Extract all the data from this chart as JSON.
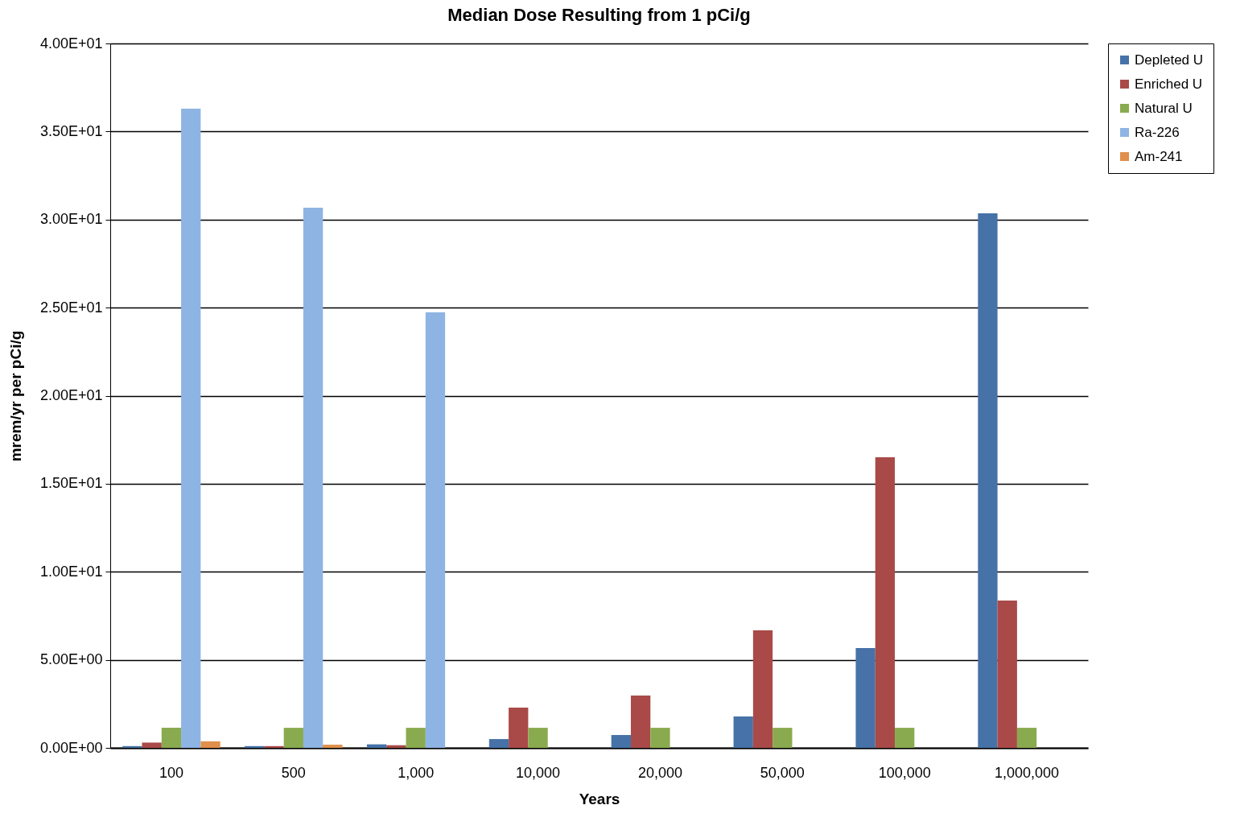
{
  "chart_data": {
    "type": "bar",
    "title": "Median Dose Resulting from 1 pCi/g",
    "xlabel": "Years",
    "ylabel": "mrem/yr per pCi/g",
    "categories": [
      "100",
      "500",
      "1,000",
      "10,000",
      "20,000",
      "50,000",
      "100,000",
      "1,000,000"
    ],
    "series": [
      {
        "name": "Depleted U",
        "color": "#4672a8",
        "values": [
          0.1,
          0.1,
          0.2,
          0.5,
          0.73,
          1.78,
          5.67,
          30.35
        ]
      },
      {
        "name": "Enriched U",
        "color": "#a94a48",
        "values": [
          0.3,
          0.1,
          0.15,
          2.29,
          2.97,
          6.67,
          16.5,
          8.37
        ]
      },
      {
        "name": "Natural U",
        "color": "#8aaa4f",
        "values": [
          1.14,
          1.14,
          1.14,
          1.14,
          1.14,
          1.14,
          1.14,
          1.14
        ]
      },
      {
        "name": "Ra-226",
        "color": "#8eb4e3",
        "values": [
          36.3,
          30.67,
          24.73,
          null,
          null,
          null,
          null,
          null
        ]
      },
      {
        "name": "Am-241",
        "color": "#e0904c",
        "values": [
          0.37,
          0.18,
          null,
          null,
          null,
          null,
          null,
          null
        ]
      }
    ],
    "ylim": [
      0,
      40
    ],
    "yticks": [
      {
        "value": 0,
        "label": "0.00E+00"
      },
      {
        "value": 5,
        "label": "5.00E+00"
      },
      {
        "value": 10,
        "label": "1.00E+01"
      },
      {
        "value": 15,
        "label": "1.50E+01"
      },
      {
        "value": 20,
        "label": "2.00E+01"
      },
      {
        "value": 25,
        "label": "2.50E+01"
      },
      {
        "value": 30,
        "label": "3.00E+01"
      },
      {
        "value": 35,
        "label": "3.50E+01"
      },
      {
        "value": 40,
        "label": "4.00E+01"
      }
    ],
    "grid": "y",
    "legend": "right"
  }
}
